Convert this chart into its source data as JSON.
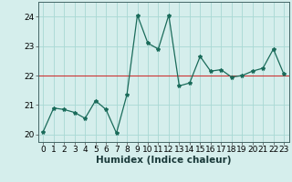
{
  "x": [
    0,
    1,
    2,
    3,
    4,
    5,
    6,
    7,
    8,
    9,
    10,
    11,
    12,
    13,
    14,
    15,
    16,
    17,
    18,
    19,
    20,
    21,
    22,
    23
  ],
  "y": [
    20.1,
    20.9,
    20.85,
    20.75,
    20.55,
    21.15,
    20.85,
    20.05,
    21.35,
    24.05,
    23.1,
    22.9,
    24.05,
    21.65,
    21.75,
    22.65,
    22.15,
    22.2,
    21.95,
    22.0,
    22.15,
    22.25,
    22.9,
    22.05
  ],
  "line_color": "#1a6b5a",
  "marker": "*",
  "marker_size": 3,
  "bg_color": "#d5eeec",
  "grid_color": "#a8d8d4",
  "hline_color": "#cc3333",
  "hline_y": 22.0,
  "xlabel": "Humidex (Indice chaleur)",
  "ylim": [
    19.75,
    24.5
  ],
  "xlim": [
    -0.5,
    23.5
  ],
  "yticks": [
    20,
    21,
    22,
    23,
    24
  ],
  "xticks": [
    0,
    1,
    2,
    3,
    4,
    5,
    6,
    7,
    8,
    9,
    10,
    11,
    12,
    13,
    14,
    15,
    16,
    17,
    18,
    19,
    20,
    21,
    22,
    23
  ],
  "xlabel_fontsize": 7.5,
  "tick_fontsize": 6.5
}
